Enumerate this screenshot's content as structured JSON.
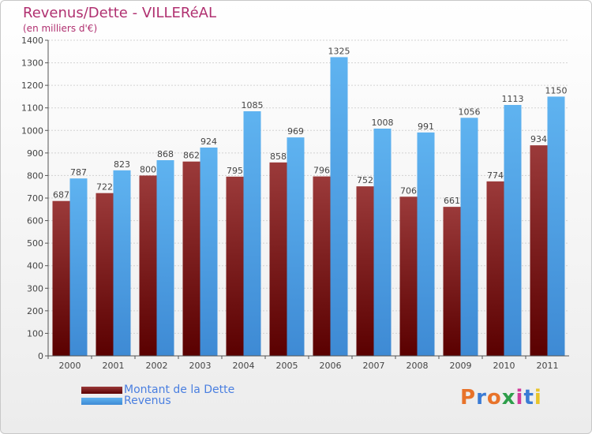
{
  "title": "Revenus/Dette - VILLERéAL",
  "subtitle": "(en milliers d'€)",
  "colors": {
    "dette_dark": "#5a0000",
    "dette_light": "#9b3a3a",
    "revenus_dark": "#3e8ad4",
    "revenus_light": "#5fb3f0",
    "title": "#b03070",
    "legend_text": "#4a7fe0"
  },
  "legend": {
    "dette_label": "Montant de la Dette",
    "revenus_label": "Revenus"
  },
  "logo": {
    "text": "Proxiti"
  },
  "chart_data": {
    "type": "bar",
    "categories": [
      "2000",
      "2001",
      "2002",
      "2003",
      "2004",
      "2005",
      "2006",
      "2007",
      "2008",
      "2009",
      "2010",
      "2011"
    ],
    "series": [
      {
        "name": "Montant de la Dette",
        "values": [
          687,
          722,
          800,
          862,
          795,
          858,
          796,
          752,
          706,
          661,
          774,
          934
        ]
      },
      {
        "name": "Revenus",
        "values": [
          787,
          823,
          868,
          924,
          1085,
          969,
          1325,
          1008,
          991,
          1056,
          1113,
          1150
        ]
      }
    ],
    "ylim": [
      0,
      1400
    ],
    "yticks": [
      0,
      100,
      200,
      300,
      400,
      500,
      600,
      700,
      800,
      900,
      1000,
      1100,
      1200,
      1300,
      1400
    ],
    "grid": true,
    "legend_position": "bottom-left"
  }
}
